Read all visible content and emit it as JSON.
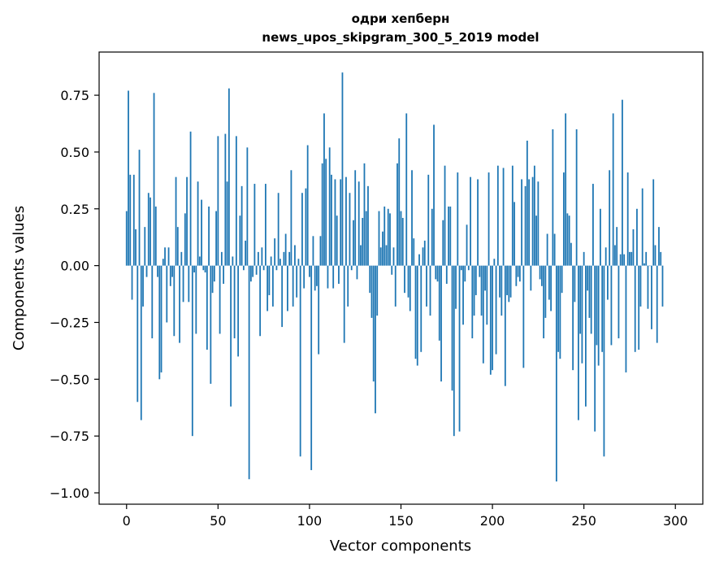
{
  "chart_data": {
    "type": "bar",
    "title": "одри хепберн",
    "subtitle": "news_upos_skipgram_300_5_2019 model",
    "xlabel": "Vector components",
    "ylabel": "Components values",
    "xlim": [
      -15,
      315
    ],
    "ylim": [
      -1.05,
      0.94
    ],
    "xticks": [
      0,
      50,
      100,
      150,
      200,
      250,
      300
    ],
    "yticks": [
      0.75,
      0.5,
      0.25,
      0.0,
      -0.25,
      -0.5,
      -0.75,
      -1.0
    ],
    "ytick_labels": [
      "0.75",
      "0.50",
      "0.25",
      "0.00",
      "−0.25",
      "−0.50",
      "−0.75",
      "−1.00"
    ],
    "grid": false,
    "bar_color": "#1f77b4",
    "values": [
      0.24,
      0.77,
      0.4,
      -0.15,
      0.4,
      0.16,
      -0.6,
      0.51,
      -0.68,
      -0.18,
      0.17,
      -0.05,
      0.32,
      0.3,
      -0.32,
      0.76,
      0.26,
      -0.05,
      -0.5,
      -0.47,
      0.03,
      0.08,
      -0.25,
      0.08,
      -0.09,
      -0.05,
      -0.31,
      0.39,
      0.17,
      -0.34,
      0.06,
      -0.16,
      0.23,
      0.39,
      -0.16,
      0.59,
      -0.75,
      -0.03,
      -0.3,
      0.37,
      0.04,
      0.29,
      -0.02,
      -0.03,
      -0.37,
      0.26,
      -0.52,
      -0.12,
      -0.07,
      0.24,
      0.57,
      -0.3,
      0.06,
      -0.08,
      0.58,
      0.37,
      0.78,
      -0.62,
      0.04,
      -0.32,
      0.57,
      -0.4,
      0.22,
      0.35,
      -0.02,
      0.11,
      0.52,
      -0.94,
      -0.07,
      -0.05,
      0.36,
      -0.04,
      0.06,
      -0.31,
      0.08,
      -0.02,
      0.36,
      -0.2,
      -0.13,
      0.04,
      -0.18,
      0.12,
      -0.02,
      0.32,
      0.03,
      -0.27,
      0.06,
      0.14,
      -0.2,
      0.06,
      0.42,
      -0.18,
      0.09,
      -0.14,
      0.03,
      -0.84,
      0.32,
      -0.1,
      0.34,
      0.53,
      -0.05,
      -0.9,
      0.13,
      -0.11,
      -0.09,
      -0.39,
      0.13,
      0.45,
      0.67,
      0.47,
      -0.1,
      0.52,
      0.4,
      -0.1,
      0.38,
      0.22,
      -0.08,
      0.38,
      0.85,
      -0.34,
      0.39,
      -0.18,
      0.32,
      -0.02,
      0.2,
      0.42,
      -0.06,
      0.37,
      0.09,
      0.21,
      0.45,
      0.24,
      0.35,
      -0.12,
      -0.23,
      -0.51,
      -0.65,
      -0.22,
      0.24,
      0.08,
      0.15,
      0.26,
      0.09,
      0.25,
      0.23,
      -0.04,
      0.08,
      -0.18,
      0.45,
      0.56,
      0.24,
      0.21,
      -0.12,
      0.67,
      -0.14,
      -0.2,
      0.42,
      0.12,
      -0.41,
      -0.44,
      0.05,
      -0.38,
      0.08,
      0.11,
      -0.18,
      0.4,
      -0.22,
      0.25,
      0.62,
      -0.06,
      -0.07,
      -0.33,
      -0.51,
      0.2,
      0.44,
      -0.08,
      0.26,
      0.26,
      -0.55,
      -0.75,
      -0.19,
      0.41,
      -0.73,
      -0.02,
      -0.26,
      -0.07,
      0.18,
      -0.02,
      0.39,
      -0.32,
      -0.22,
      -0.13,
      0.38,
      -0.05,
      -0.22,
      -0.43,
      -0.11,
      -0.26,
      0.41,
      -0.48,
      -0.46,
      0.03,
      -0.39,
      0.44,
      -0.14,
      -0.22,
      0.43,
      -0.53,
      -0.13,
      -0.16,
      -0.14,
      0.44,
      0.28,
      -0.09,
      -0.05,
      -0.07,
      0.38,
      -0.45,
      0.35,
      0.55,
      0.38,
      -0.11,
      0.39,
      0.44,
      0.22,
      0.37,
      -0.06,
      -0.09,
      -0.32,
      -0.23,
      0.14,
      -0.15,
      -0.2,
      0.6,
      0.14,
      -0.95,
      -0.38,
      -0.41,
      -0.12,
      0.41,
      0.67,
      0.23,
      0.22,
      0.1,
      -0.46,
      -0.16,
      0.6,
      -0.68,
      -0.3,
      -0.43,
      0.06,
      -0.62,
      -0.11,
      -0.23,
      -0.3,
      0.36,
      -0.73,
      -0.35,
      -0.44,
      0.25,
      -0.38,
      -0.84,
      0.08,
      -0.15,
      0.42,
      -0.35,
      0.67,
      0.09,
      0.17,
      -0.32,
      0.05,
      0.73,
      0.05,
      -0.47,
      0.41,
      0.06,
      0.06,
      0.16,
      -0.38,
      0.25,
      -0.37,
      -0.18,
      0.34,
      0.01,
      0.06,
      -0.19,
      0.0,
      -0.28,
      0.38,
      0.09,
      -0.34,
      0.17,
      0.06,
      -0.18
    ]
  }
}
